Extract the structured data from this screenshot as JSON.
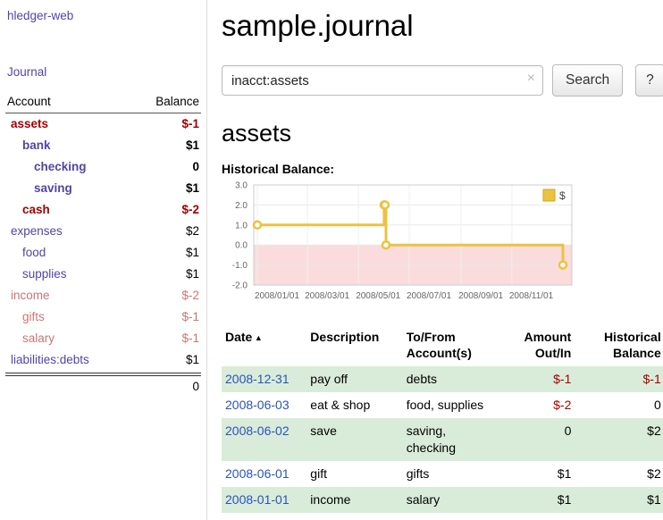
{
  "app": {
    "title": "hledger-web"
  },
  "colors": {
    "link_purple": "#5244a9",
    "negative_red": "#a40000",
    "date_link_blue": "#2a52be",
    "row_green": "#d9ecd9",
    "series_yellow": "#edc240",
    "negative_region_pink": "#fadcdc"
  },
  "sidebar": {
    "journal_link": "Journal",
    "table": {
      "account_header": "Account",
      "balance_header": "Balance",
      "rows": [
        {
          "name": "assets",
          "balance": "$-1",
          "depth": 0,
          "current": true,
          "negative": true,
          "dimmed": false
        },
        {
          "name": "bank",
          "balance": "$1",
          "depth": 1,
          "current": true,
          "negative": false,
          "dimmed": false
        },
        {
          "name": "checking",
          "balance": "0",
          "depth": 2,
          "current": true,
          "negative": false,
          "dimmed": false
        },
        {
          "name": "saving",
          "balance": "$1",
          "depth": 2,
          "current": true,
          "negative": false,
          "dimmed": false
        },
        {
          "name": "cash",
          "balance": "$-2",
          "depth": 1,
          "current": true,
          "negative": true,
          "dimmed": false
        },
        {
          "name": "expenses",
          "balance": "$2",
          "depth": 0,
          "current": false,
          "negative": false,
          "dimmed": false
        },
        {
          "name": "food",
          "balance": "$1",
          "depth": 1,
          "current": false,
          "negative": false,
          "dimmed": false
        },
        {
          "name": "supplies",
          "balance": "$1",
          "depth": 1,
          "current": false,
          "negative": false,
          "dimmed": false
        },
        {
          "name": "income",
          "balance": "$-2",
          "depth": 0,
          "current": false,
          "negative": true,
          "dimmed": true
        },
        {
          "name": "gifts",
          "balance": "$-1",
          "depth": 1,
          "current": false,
          "negative": true,
          "dimmed": true
        },
        {
          "name": "salary",
          "balance": "$-1",
          "depth": 1,
          "current": false,
          "negative": true,
          "dimmed": true
        },
        {
          "name": "liabilities:debts",
          "balance": "$1",
          "depth": 0,
          "current": false,
          "negative": false,
          "dimmed": false
        }
      ],
      "total": "0"
    }
  },
  "main": {
    "title": "sample.journal",
    "search": {
      "value": "inacct:assets",
      "clear_icon": "×",
      "button_label": "Search",
      "help_label": "?"
    },
    "account_heading": "assets"
  },
  "chart_data": {
    "type": "line",
    "step": true,
    "title": "Historical Balance:",
    "ylim": [
      -2.0,
      3.0
    ],
    "yticks": [
      "3.0",
      "2.0",
      "1.0",
      "0.0",
      "-1.0",
      "-2.0"
    ],
    "xticks": [
      {
        "label": "2008/01/01",
        "f": 0.0
      },
      {
        "label": "2008/03/01",
        "f": 0.164
      },
      {
        "label": "2008/05/01",
        "f": 0.331
      },
      {
        "label": "2008/07/01",
        "f": 0.497
      },
      {
        "label": "2008/09/01",
        "f": 0.667
      },
      {
        "label": "2008/11/01",
        "f": 0.833
      }
    ],
    "series": [
      {
        "name": "$",
        "color": "#edc240",
        "points": [
          {
            "x": "2008-01-01",
            "xf": 0.0,
            "y": 1
          },
          {
            "x": "2008-06-01",
            "xf": 0.415,
            "y": 2
          },
          {
            "x": "2008-06-02",
            "xf": 0.418,
            "y": 2
          },
          {
            "x": "2008-06-03",
            "xf": 0.421,
            "y": 0
          },
          {
            "x": "2008-12-31",
            "xf": 1.0,
            "y": -1
          }
        ]
      }
    ],
    "negative_region_color": "#fadcdc",
    "legend": {
      "label": "$",
      "position": "top-right"
    },
    "grid": true
  },
  "register": {
    "sort_icon": "▲",
    "headers": [
      {
        "key": "date",
        "lines": [
          "Date"
        ],
        "sortable": true
      },
      {
        "key": "description",
        "lines": [
          "Description"
        ]
      },
      {
        "key": "accounts",
        "lines": [
          "To/From",
          "Account(s)"
        ]
      },
      {
        "key": "amount",
        "lines": [
          "Amount",
          "Out/In"
        ],
        "align": "right"
      },
      {
        "key": "balance",
        "lines": [
          "Historical",
          "Balance"
        ],
        "align": "right"
      }
    ],
    "rows": [
      {
        "date": "2008-12-31",
        "description": "pay off",
        "accounts": "debts",
        "amount": "$-1",
        "amount_negative": true,
        "balance": "$-1",
        "balance_negative": true,
        "shaded": true
      },
      {
        "date": "2008-06-03",
        "description": "eat & shop",
        "accounts": "food, supplies",
        "amount": "$-2",
        "amount_negative": true,
        "balance": "0",
        "balance_negative": false,
        "shaded": false
      },
      {
        "date": "2008-06-02",
        "description": "save",
        "accounts": "saving, checking",
        "amount": "0",
        "amount_negative": false,
        "balance": "$2",
        "balance_negative": false,
        "shaded": true
      },
      {
        "date": "2008-06-01",
        "description": "gift",
        "accounts": "gifts",
        "amount": "$1",
        "amount_negative": false,
        "balance": "$2",
        "balance_negative": false,
        "shaded": false
      },
      {
        "date": "2008-01-01",
        "description": "income",
        "accounts": "salary",
        "amount": "$1",
        "amount_negative": false,
        "balance": "$1",
        "balance_negative": false,
        "shaded": true
      }
    ]
  }
}
